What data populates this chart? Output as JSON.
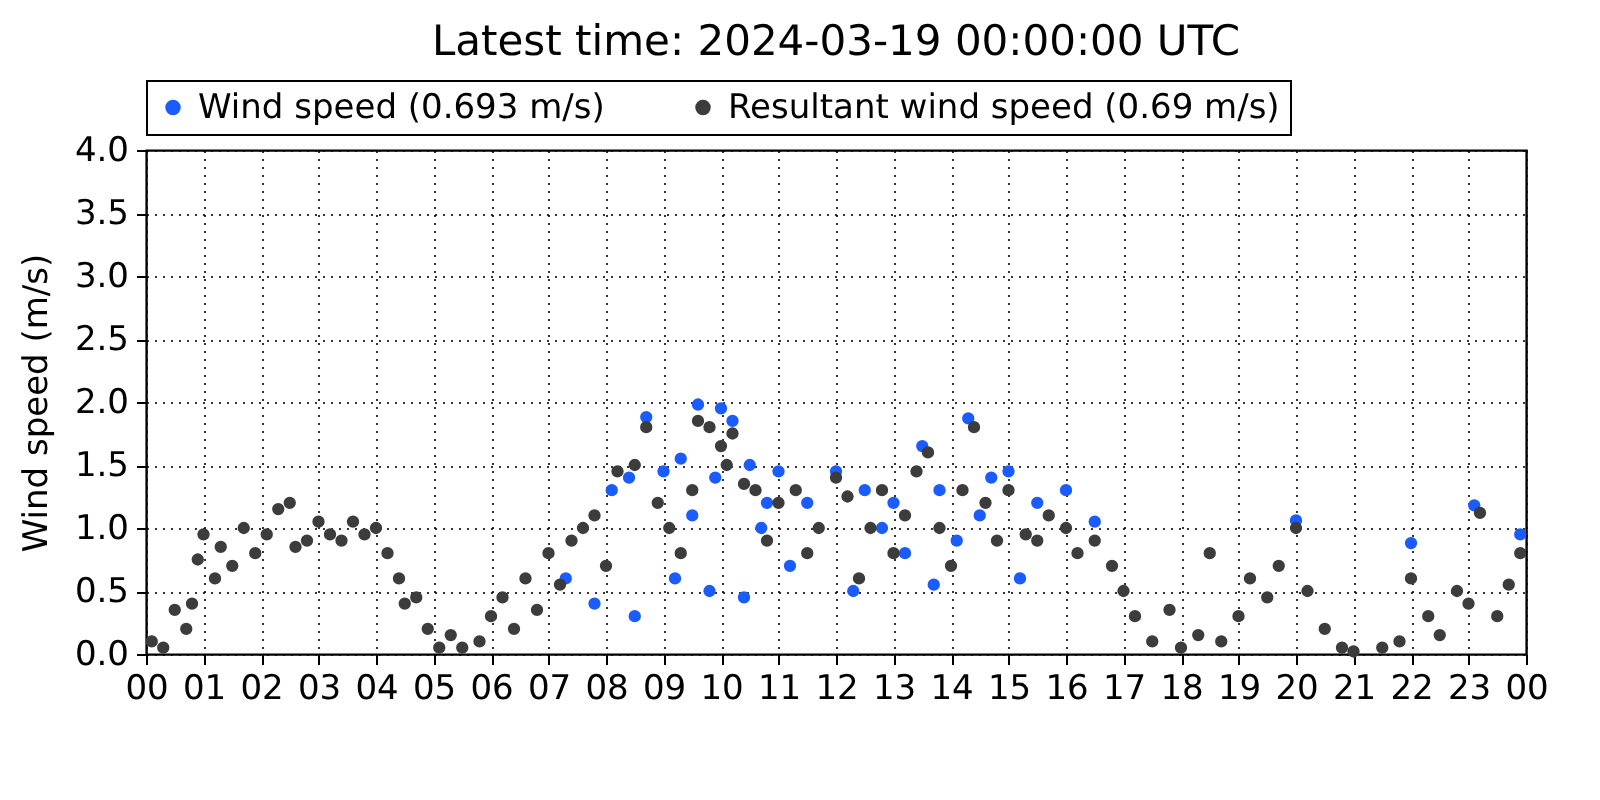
{
  "chart_data": {
    "type": "scatter",
    "title": "Latest time: 2024-03-19 00:00:00 UTC",
    "ylabel": "Wind speed (m/s)",
    "xlim": [
      0,
      24
    ],
    "xticks": [
      {
        "value": 0,
        "label": "00"
      },
      {
        "value": 1,
        "label": "01"
      },
      {
        "value": 2,
        "label": "02"
      },
      {
        "value": 3,
        "label": "03"
      },
      {
        "value": 4,
        "label": "04"
      },
      {
        "value": 5,
        "label": "05"
      },
      {
        "value": 6,
        "label": "06"
      },
      {
        "value": 7,
        "label": "07"
      },
      {
        "value": 8,
        "label": "08"
      },
      {
        "value": 9,
        "label": "09"
      },
      {
        "value": 10,
        "label": "10"
      },
      {
        "value": 11,
        "label": "11"
      },
      {
        "value": 12,
        "label": "12"
      },
      {
        "value": 13,
        "label": "13"
      },
      {
        "value": 14,
        "label": "14"
      },
      {
        "value": 15,
        "label": "15"
      },
      {
        "value": 16,
        "label": "16"
      },
      {
        "value": 17,
        "label": "17"
      },
      {
        "value": 18,
        "label": "18"
      },
      {
        "value": 19,
        "label": "19"
      },
      {
        "value": 20,
        "label": "20"
      },
      {
        "value": 21,
        "label": "21"
      },
      {
        "value": 22,
        "label": "22"
      },
      {
        "value": 23,
        "label": "23"
      },
      {
        "value": 24,
        "label": "00"
      }
    ],
    "ylim": [
      0,
      4
    ],
    "yticks": [
      {
        "value": 0,
        "label": "0.0"
      },
      {
        "value": 0.5,
        "label": "0.5"
      },
      {
        "value": 1,
        "label": "1.0"
      },
      {
        "value": 1.5,
        "label": "1.5"
      },
      {
        "value": 2,
        "label": "2.0"
      },
      {
        "value": 2.5,
        "label": "2.5"
      },
      {
        "value": 3,
        "label": "3.0"
      },
      {
        "value": 3.5,
        "label": "3.5"
      },
      {
        "value": 4,
        "label": "4.0"
      }
    ],
    "grid": true,
    "legend": "top",
    "marker": "circle",
    "series": [
      {
        "name": "Wind speed (0.693 m/s)",
        "color": "#1a5cff",
        "x": [
          8.1,
          8.4,
          8.7,
          9.0,
          9.3,
          9.6,
          9.9,
          10.0,
          10.2,
          10.5,
          10.8,
          11.0,
          11.5,
          12.0,
          12.5,
          13.0,
          13.5,
          13.8,
          14.3,
          14.7,
          15.0,
          15.5,
          16.0,
          16.5,
          20.0,
          22.0,
          23.1,
          23.9,
          7.3,
          7.8,
          8.5,
          9.2,
          9.8,
          10.4,
          11.2,
          12.3,
          13.2,
          14.1,
          15.2,
          9.5,
          10.7,
          12.8,
          13.7,
          14.5
        ],
        "values": [
          1.3,
          1.4,
          1.88,
          1.45,
          1.55,
          1.98,
          1.4,
          1.95,
          1.85,
          1.5,
          1.2,
          1.45,
          1.2,
          1.45,
          1.3,
          1.2,
          1.65,
          1.3,
          1.87,
          1.4,
          1.45,
          1.2,
          1.3,
          1.05,
          1.06,
          0.88,
          1.18,
          0.95,
          0.6,
          0.4,
          0.3,
          0.6,
          0.5,
          0.45,
          0.7,
          0.5,
          0.8,
          0.9,
          0.6,
          1.1,
          1.0,
          1.0,
          0.55,
          1.1
        ]
      },
      {
        "name": "Resultant wind speed (0.69 m/s)",
        "color": "#3c3c3c",
        "x": [
          0.1,
          0.3,
          0.5,
          0.7,
          0.8,
          0.9,
          1.0,
          1.2,
          1.3,
          1.5,
          1.7,
          1.9,
          2.1,
          2.3,
          2.5,
          2.6,
          2.8,
          3.0,
          3.2,
          3.4,
          3.6,
          3.8,
          4.0,
          4.2,
          4.4,
          4.5,
          4.7,
          4.9,
          5.1,
          5.3,
          5.5,
          5.8,
          6.0,
          6.2,
          6.4,
          6.6,
          6.8,
          7.0,
          7.2,
          7.4,
          7.6,
          7.8,
          8.0,
          8.2,
          8.5,
          8.7,
          8.9,
          9.1,
          9.3,
          9.5,
          9.6,
          9.8,
          10.0,
          10.1,
          10.2,
          10.4,
          10.6,
          10.8,
          11.0,
          11.3,
          11.5,
          11.7,
          12.0,
          12.2,
          12.4,
          12.6,
          12.8,
          13.0,
          13.2,
          13.4,
          13.6,
          13.8,
          14.0,
          14.2,
          14.4,
          14.6,
          14.8,
          15.0,
          15.3,
          15.5,
          15.7,
          16.0,
          16.2,
          16.5,
          16.8,
          17.0,
          17.2,
          17.5,
          17.8,
          18.0,
          18.3,
          18.5,
          18.7,
          19.0,
          19.2,
          19.5,
          19.7,
          20.0,
          20.2,
          20.5,
          20.8,
          21.0,
          21.5,
          21.8,
          22.0,
          22.3,
          22.5,
          22.8,
          23.0,
          23.2,
          23.5,
          23.7,
          23.9
        ],
        "values": [
          0.1,
          0.05,
          0.35,
          0.2,
          0.4,
          0.75,
          0.95,
          0.6,
          0.85,
          0.7,
          1.0,
          0.8,
          0.95,
          1.15,
          1.2,
          0.85,
          0.9,
          1.05,
          0.95,
          0.9,
          1.05,
          0.95,
          1.0,
          0.8,
          0.6,
          0.4,
          0.45,
          0.2,
          0.05,
          0.15,
          0.05,
          0.1,
          0.3,
          0.45,
          0.2,
          0.6,
          0.35,
          0.8,
          0.55,
          0.9,
          1.0,
          1.1,
          0.7,
          1.45,
          1.5,
          1.8,
          1.2,
          1.0,
          0.8,
          1.3,
          1.85,
          1.8,
          1.65,
          1.5,
          1.75,
          1.35,
          1.3,
          0.9,
          1.2,
          1.3,
          0.8,
          1.0,
          1.4,
          1.25,
          0.6,
          1.0,
          1.3,
          0.8,
          1.1,
          1.45,
          1.6,
          1.0,
          0.7,
          1.3,
          1.8,
          1.2,
          0.9,
          1.3,
          0.95,
          0.9,
          1.1,
          1.0,
          0.8,
          0.9,
          0.7,
          0.5,
          0.3,
          0.1,
          0.35,
          0.05,
          0.15,
          0.8,
          0.1,
          0.3,
          0.6,
          0.45,
          0.7,
          1.0,
          0.5,
          0.2,
          0.05,
          0.02,
          0.05,
          0.1,
          0.6,
          0.3,
          0.15,
          0.5,
          0.4,
          1.12,
          0.3,
          0.55,
          0.8
        ]
      }
    ]
  }
}
